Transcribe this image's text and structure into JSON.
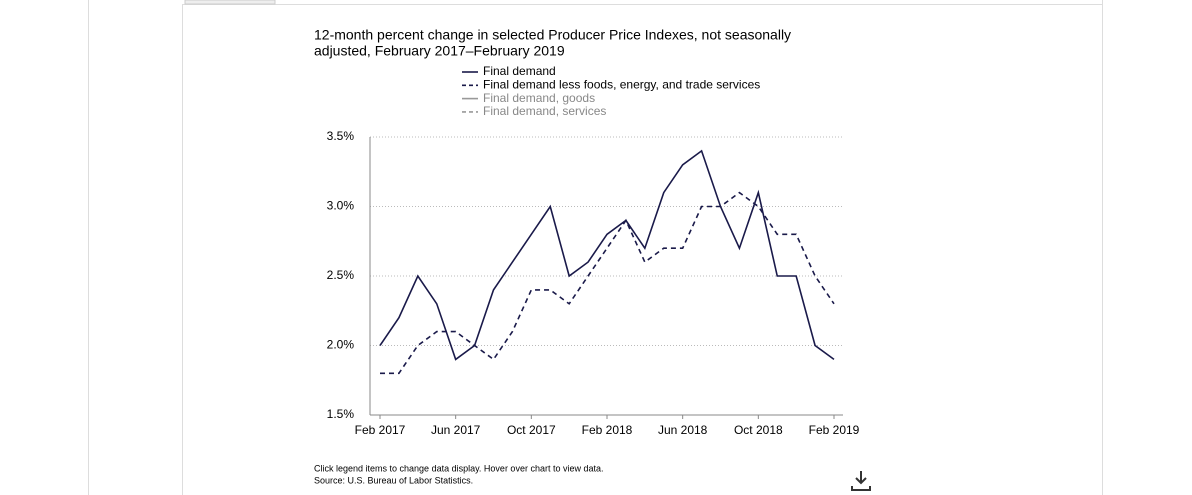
{
  "chart_data": {
    "type": "line",
    "title": [
      "12-month percent change in selected Producer Price Indexes, not seasonally",
      "adjusted, February 2017–February 2019"
    ],
    "categories": [
      "Feb 2017",
      null,
      null,
      null,
      "Jun 2017",
      null,
      null,
      null,
      "Oct 2017",
      null,
      null,
      null,
      "Feb 2018",
      null,
      null,
      null,
      "Jun 2018",
      null,
      null,
      null,
      "Oct 2018",
      null,
      null,
      null,
      "Feb 2019"
    ],
    "series": [
      {
        "name": "Final demand",
        "color": "#1a1a4a",
        "dash": "solid",
        "visible": true,
        "values": [
          2.0,
          2.2,
          2.5,
          2.3,
          1.9,
          2.0,
          2.4,
          2.6,
          2.8,
          3.0,
          2.5,
          2.6,
          2.8,
          2.9,
          2.7,
          3.1,
          3.3,
          3.4,
          3.0,
          2.7,
          3.1,
          2.5,
          2.5,
          2.0,
          1.9
        ]
      },
      {
        "name": "Final demand less foods, energy, and trade services",
        "color": "#1a1a4a",
        "dash": "dashed",
        "visible": true,
        "values": [
          1.8,
          1.8,
          2.0,
          2.1,
          2.1,
          2.0,
          1.9,
          2.1,
          2.4,
          2.4,
          2.3,
          2.5,
          2.7,
          2.9,
          2.6,
          2.7,
          2.7,
          3.0,
          3.0,
          3.1,
          3.0,
          2.8,
          2.8,
          2.5,
          2.3
        ]
      },
      {
        "name": "Final demand, goods",
        "color": "#999999",
        "dash": "solid",
        "visible": false
      },
      {
        "name": "Final demand, services",
        "color": "#999999",
        "dash": "dashed",
        "visible": false
      }
    ],
    "ylim": [
      1.5,
      3.5
    ],
    "yticks": [
      {
        "value": 1.5,
        "label": "1.5%"
      },
      {
        "value": 2.0,
        "label": "2.0%"
      },
      {
        "value": 2.5,
        "label": "2.5%"
      },
      {
        "value": 3.0,
        "label": "3.0%"
      },
      {
        "value": 3.5,
        "label": "3.5%"
      }
    ],
    "grid": true,
    "notes": [
      "Click legend items to change data display. Hover over chart to view data.",
      "Source: U.S. Bureau of Labor Statistics."
    ]
  }
}
